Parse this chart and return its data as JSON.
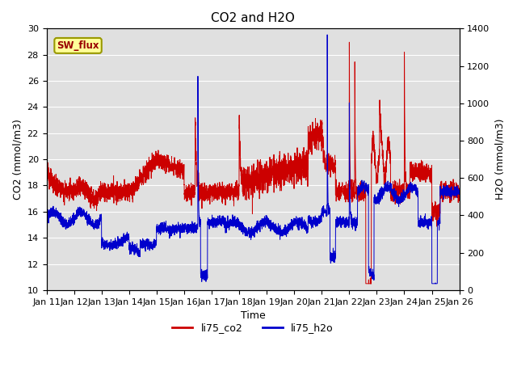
{
  "title": "CO2 and H2O",
  "xlabel": "Time",
  "ylabel_left": "CO2 (mmol/m3)",
  "ylabel_right": "H2O (mmol/m3)",
  "ylim_left": [
    10,
    30
  ],
  "ylim_right": [
    0,
    1400
  ],
  "xtick_labels": [
    "Jan 11",
    "Jan 12",
    "Jan 13",
    "Jan 14",
    "Jan 15",
    "Jan 16",
    "Jan 17",
    "Jan 18",
    "Jan 19",
    "Jan 20",
    "Jan 21",
    "Jan 22",
    "Jan 23",
    "Jan 24",
    "Jan 25",
    "Jan 26"
  ],
  "co2_color": "#cc0000",
  "h2o_color": "#0000cc",
  "background_color": "#e0e0e0",
  "sw_flux_box_color": "#ffff99",
  "sw_flux_text_color": "#990000",
  "sw_flux_border_color": "#999900",
  "legend_co2_label": "li75_co2",
  "legend_h2o_label": "li75_h2o",
  "title_fontsize": 11,
  "axis_label_fontsize": 9,
  "tick_fontsize": 8,
  "legend_fontsize": 9,
  "n_days": 15,
  "pts_per_day": 300
}
